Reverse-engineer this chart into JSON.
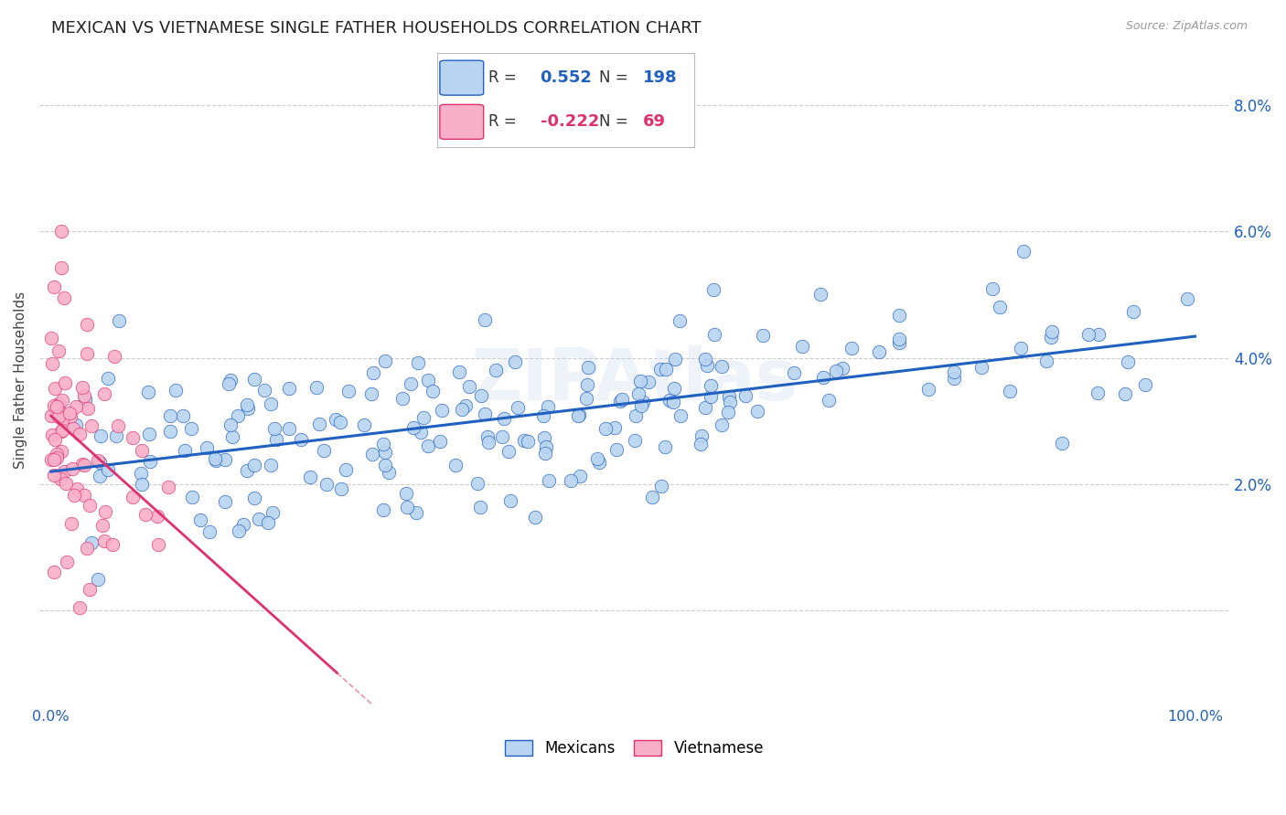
{
  "title": "MEXICAN VS VIETNAMESE SINGLE FATHER HOUSEHOLDS CORRELATION CHART",
  "source": "Source: ZipAtlas.com",
  "ylabel": "Single Father Households",
  "yticks": [
    0.0,
    0.02,
    0.04,
    0.06,
    0.08
  ],
  "ytick_labels": [
    "",
    "2.0%",
    "4.0%",
    "6.0%",
    "8.0%"
  ],
  "xticks": [
    0.0,
    0.2,
    0.4,
    0.6,
    0.8,
    1.0
  ],
  "xtick_labels": [
    "0.0%",
    "",
    "",
    "",
    "",
    "100.0%"
  ],
  "xlim": [
    -0.01,
    1.03
  ],
  "ylim": [
    -0.015,
    0.088
  ],
  "mexican_R": 0.552,
  "mexican_N": 198,
  "vietnamese_R": -0.222,
  "vietnamese_N": 69,
  "mexican_color": "#b8d4f0",
  "mexican_line_color": "#2060c0",
  "vietnamese_color": "#f8b0c8",
  "vietnamese_line_color": "#e03070",
  "watermark": "ZIPAtlas",
  "background_color": "#ffffff",
  "grid_color": "#cccccc",
  "title_fontsize": 13,
  "axis_label_fontsize": 11,
  "tick_color_blue": "#2060c0",
  "tick_color_pink": "#e03070",
  "legend_R_color": "#333333",
  "legend_N_color": "#333333"
}
